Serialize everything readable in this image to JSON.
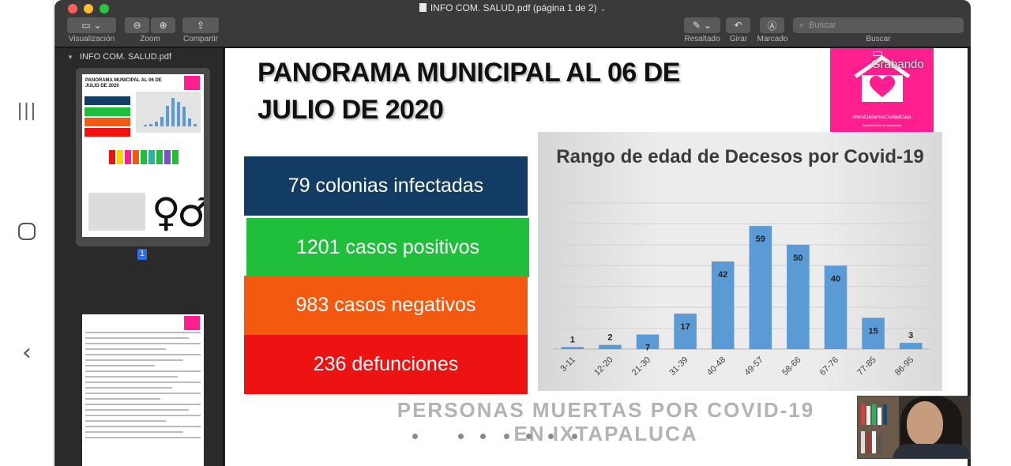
{
  "window": {
    "title": "INFO COM. SALUD.pdf (página 1 de 2)"
  },
  "toolbar": {
    "view_label": "Visualización",
    "zoom_label": "Zoom",
    "share_label": "Compartir",
    "markup_label": "Resaltado",
    "rotate_label": "Girar",
    "annotate_label": "Marcado",
    "search_label": "Buscar",
    "search_placeholder": "Buscar"
  },
  "sidebar": {
    "file_name": "INFO COM. SALUD.pdf",
    "page_badge": "1"
  },
  "slide": {
    "title_line1": "PANORAMA MUNICIPAL AL 06 DE",
    "title_line2": "JULIO DE 2020",
    "stats": [
      {
        "text": "79 colonias infectadas"
      },
      {
        "text": "1201 casos positivos"
      },
      {
        "text": "983 casos negativos"
      },
      {
        "text": "236 defunciones"
      }
    ],
    "footer_line1": "PERSONAS MUERTAS POR COVID-19",
    "footer_line2": "EN IXTAPALUCA",
    "logo_tag": "#NosCuidamosCiudadCasa",
    "logo_sub": "Ayuntamiento de Ixtapaluca",
    "recording_label": "Grabando"
  },
  "chart_data": {
    "type": "bar",
    "title": "Rango de edad de Decesos por Covid-19",
    "categories": [
      "3-11",
      "12-20",
      "21-30",
      "31-39",
      "40-48",
      "49-57",
      "58-66",
      "67-76",
      "77-85",
      "86-95"
    ],
    "values": [
      1,
      2,
      7,
      17,
      42,
      59,
      50,
      40,
      15,
      3
    ],
    "ylim": [
      0,
      70
    ],
    "grid": true,
    "bar_color": "#5b9bd5"
  },
  "colors": {
    "blue": "#133c64",
    "green": "#1fbf3c",
    "orange": "#f35a0f",
    "red": "#ee1313",
    "brand_pink": "#ff1f8e"
  }
}
